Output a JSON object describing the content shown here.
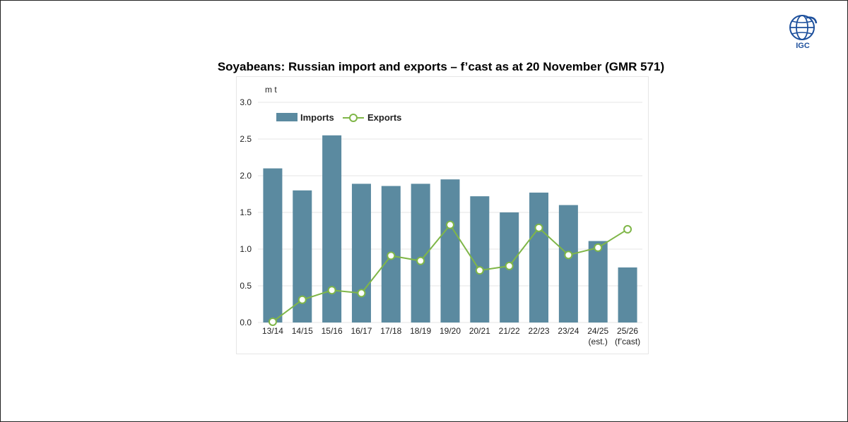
{
  "logo": {
    "label": "IGC"
  },
  "title": "Soyabeans: Russian import and exports – f’cast as at 20 November (GMR 571)",
  "colors": {
    "bar": "#5b8aa0",
    "line": "#7fb648",
    "marker_fill": "#ffffff",
    "grid": "#e4e4e4",
    "logo": "#1c4f9c"
  },
  "chart_data": {
    "type": "bar",
    "title": "Soyabeans: Russian import and exports – f’cast as at 20 November (GMR 571)",
    "ylabel": "m t",
    "xlabel": "",
    "ylim": [
      0,
      3.0
    ],
    "yticks": [
      "0.0",
      "0.5",
      "1.0",
      "1.5",
      "2.0",
      "2.5",
      "3.0"
    ],
    "grid": true,
    "legend_position": "top-left",
    "categories": [
      "13/14",
      "14/15",
      "15/16",
      "16/17",
      "17/18",
      "18/19",
      "19/20",
      "20/21",
      "21/22",
      "22/23",
      "23/24",
      "24/25",
      "25/26"
    ],
    "category_sublabels": [
      "",
      "",
      "",
      "",
      "",
      "",
      "",
      "",
      "",
      "",
      "",
      "(est.)",
      "(f’cast)"
    ],
    "series": [
      {
        "name": "Imports",
        "type": "bar",
        "values": [
          2.1,
          1.8,
          2.55,
          1.89,
          1.86,
          1.89,
          1.95,
          1.72,
          1.5,
          1.77,
          1.6,
          1.11,
          0.75
        ]
      },
      {
        "name": "Exports",
        "type": "line",
        "values": [
          0.01,
          0.31,
          0.44,
          0.4,
          0.91,
          0.84,
          1.33,
          0.71,
          0.77,
          1.29,
          0.92,
          1.02,
          1.27
        ]
      }
    ]
  }
}
